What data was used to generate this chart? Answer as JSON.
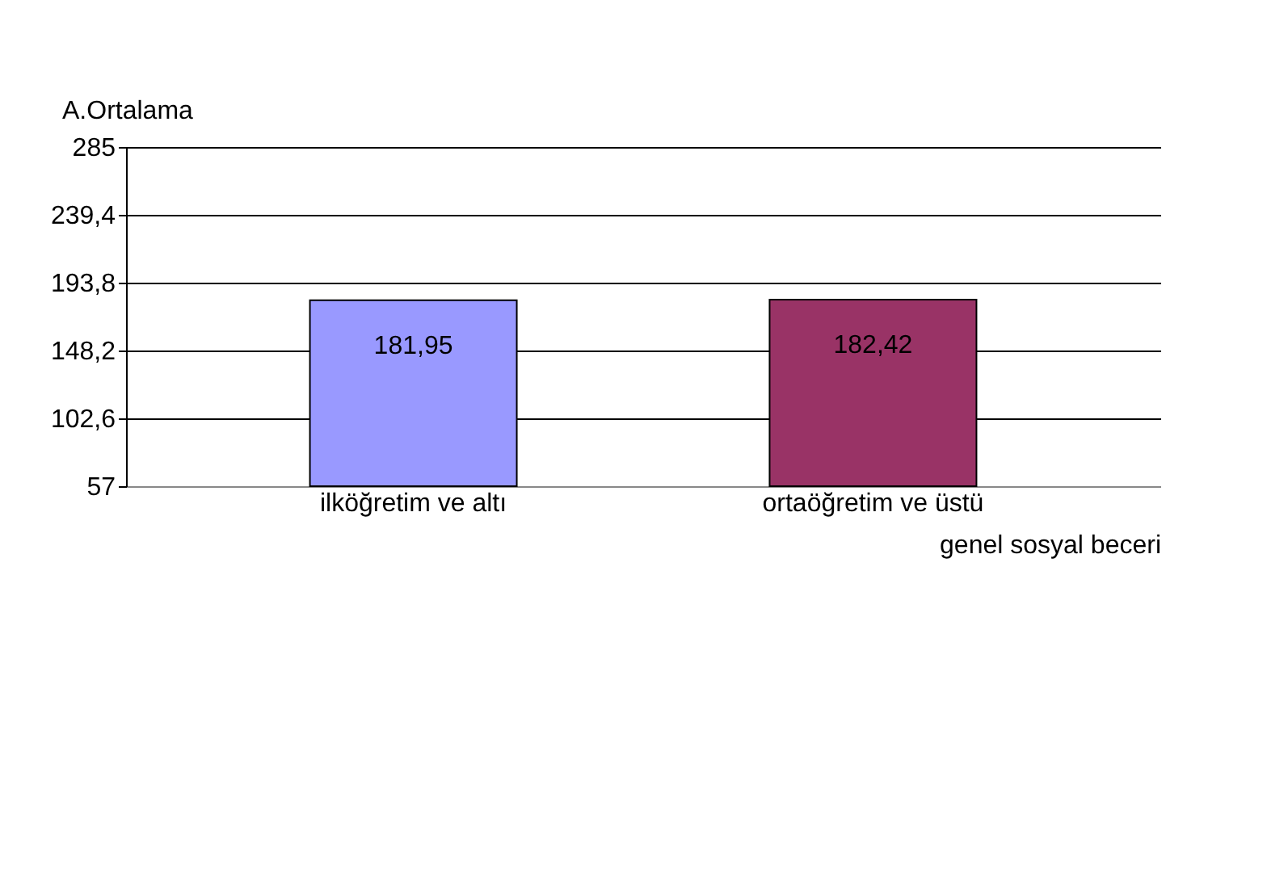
{
  "chart_data": {
    "type": "bar",
    "ylabel": "A.Ortalama",
    "xlabel": "genel sosyal beceri",
    "categories": [
      "ilköğretim ve altı",
      "ortaöğretim ve üstü"
    ],
    "values": [
      181.95,
      182.42
    ],
    "colors": [
      "#9999ff",
      "#993366"
    ],
    "ylim": [
      57,
      285
    ],
    "yticks": [
      57,
      {
        "value": 102.6,
        "label": "102,6"
      },
      {
        "value": 148.2,
        "label": "148,2"
      },
      {
        "value": 193.8,
        "label": "193,8"
      },
      {
        "value": 239.4,
        "label": "239,4"
      },
      285
    ],
    "grid": "y",
    "value_labels": [
      "181,95",
      "182,42"
    ]
  }
}
